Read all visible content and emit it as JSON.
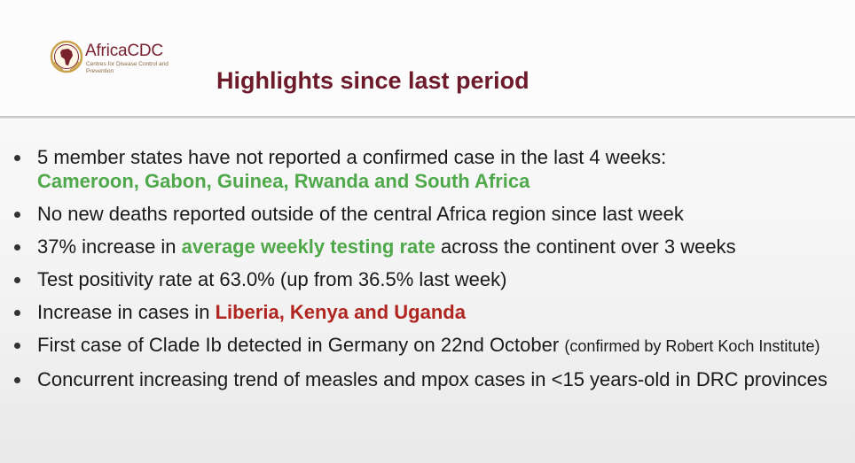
{
  "header": {
    "logo": {
      "name": "AfricaCDC",
      "subtitle": "Centres for Disease Control and Prevention",
      "icon": "africa-cdc-emblem-icon"
    },
    "title": "Highlights since last period"
  },
  "colors": {
    "title": "#6d1a2a",
    "highlight_green": "#4fa84a",
    "highlight_red": "#b0251f",
    "text": "#1a1a1a"
  },
  "bullets": [
    {
      "text": "5 member states have not reported a confirmed case in the last 4 weeks:",
      "highlight": "Cameroon, Gabon, Guinea, Rwanda and South Africa"
    },
    {
      "text": "No new deaths reported outside of the central Africa region since last week"
    },
    {
      "prefix": "37% increase in",
      "highlight": "average weekly testing rate",
      "suffix": "across the continent over 3 weeks"
    },
    {
      "text": "Test positivity rate at 63.0% (up from 36.5% last week)"
    },
    {
      "prefix": "Increase in cases in",
      "highlight": "Liberia, Kenya and Uganda"
    },
    {
      "text": "First case of Clade Ib detected in Germany on 22nd October",
      "note": "(confirmed by Robert Koch Institute)"
    },
    {
      "text": "Concurrent increasing trend of measles and mpox cases in <15 years-old in DRC provinces"
    }
  ]
}
